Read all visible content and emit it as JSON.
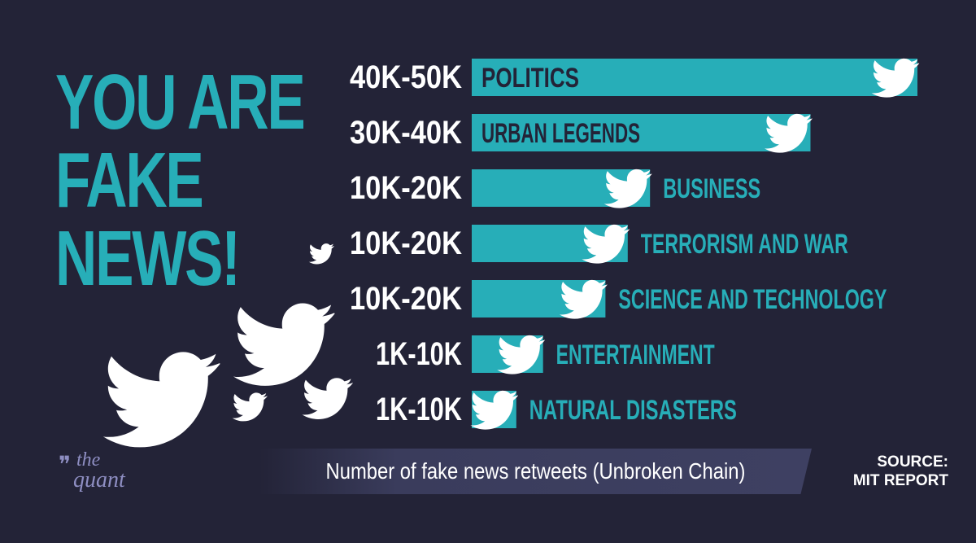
{
  "headline": {
    "line1": "YOU ARE",
    "line2": "FAKE",
    "line3": "NEWS!"
  },
  "chart_data": {
    "type": "bar",
    "orientation": "horizontal",
    "title": "",
    "categories": [
      "POLITICS",
      "URBAN LEGENDS",
      "BUSINESS",
      "TERRORISM AND WAR",
      "SCIENCE AND TECHNOLOGY",
      "ENTERTAINMENT",
      "NATURAL DISASTERS"
    ],
    "range_labels": [
      "40K-50K",
      "30K-40K",
      "10K-20K",
      "10K-20K",
      "10K-20K",
      "1K-10K",
      "1K-10K"
    ],
    "values": [
      50000,
      38000,
      20000,
      17500,
      15000,
      8000,
      5000
    ],
    "xlim": [
      0,
      50000
    ],
    "bar_color": "#27aeb8",
    "label_on_bar_color": "#232337",
    "label_off_bar_color": "#27aeb8"
  },
  "caption": "Number of fake news retweets (Unbroken Chain)",
  "source": {
    "line1": "SOURCE:",
    "line2": "MIT REPORT"
  },
  "logo": {
    "mark": "❞",
    "the": "the",
    "quant": "quant"
  },
  "colors": {
    "background": "#232337",
    "accent": "#27aeb8",
    "text": "#ffffff"
  }
}
